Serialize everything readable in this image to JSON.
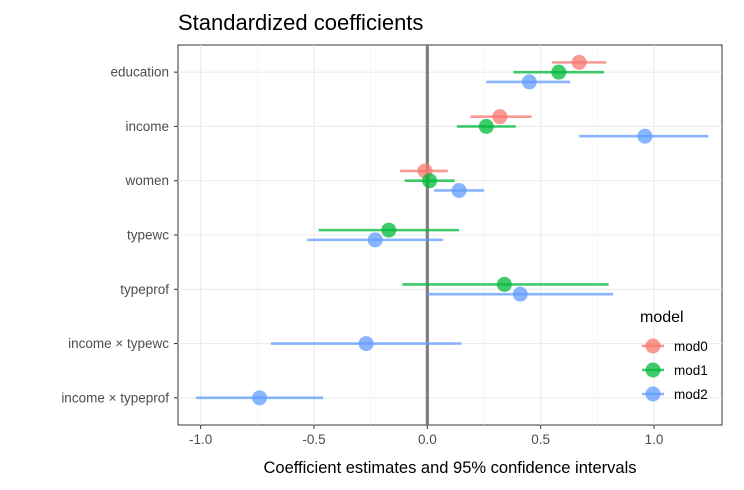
{
  "chart_data": {
    "type": "scatter",
    "subtype": "coefficient-plot",
    "title": "Standardized coefficients",
    "xlabel": "Coefficient estimates and 95% confidence intervals",
    "ylabel": "",
    "xlim": [
      -1.1,
      1.3
    ],
    "x_ticks": [
      -1.0,
      -0.5,
      0.0,
      0.5,
      1.0
    ],
    "x_tick_labels": [
      "-1.0",
      "-0.5",
      "0.0",
      "0.5",
      "1.0"
    ],
    "categories": [
      "education",
      "income",
      "women",
      "typewc",
      "typeprof",
      "income × typewc",
      "income × typeprof"
    ],
    "reference_line": 0,
    "grid": true,
    "legend": {
      "title": "model",
      "position": "right-bottom"
    },
    "series": [
      {
        "name": "mod0",
        "color": "#F8766D",
        "points": [
          {
            "term": "education",
            "estimate": 0.67,
            "lower": 0.55,
            "upper": 0.79
          },
          {
            "term": "income",
            "estimate": 0.32,
            "lower": 0.19,
            "upper": 0.46
          },
          {
            "term": "women",
            "estimate": -0.01,
            "lower": -0.12,
            "upper": 0.09
          }
        ]
      },
      {
        "name": "mod1",
        "color": "#00BA38",
        "points": [
          {
            "term": "education",
            "estimate": 0.58,
            "lower": 0.38,
            "upper": 0.78
          },
          {
            "term": "income",
            "estimate": 0.26,
            "lower": 0.13,
            "upper": 0.39
          },
          {
            "term": "women",
            "estimate": 0.01,
            "lower": -0.1,
            "upper": 0.12
          },
          {
            "term": "typewc",
            "estimate": -0.17,
            "lower": -0.48,
            "upper": 0.14
          },
          {
            "term": "typeprof",
            "estimate": 0.34,
            "lower": -0.11,
            "upper": 0.8
          }
        ]
      },
      {
        "name": "mod2",
        "color": "#619CFF",
        "points": [
          {
            "term": "education",
            "estimate": 0.45,
            "lower": 0.26,
            "upper": 0.63
          },
          {
            "term": "income",
            "estimate": 0.96,
            "lower": 0.67,
            "upper": 1.24
          },
          {
            "term": "women",
            "estimate": 0.14,
            "lower": 0.03,
            "upper": 0.25
          },
          {
            "term": "typewc",
            "estimate": -0.23,
            "lower": -0.53,
            "upper": 0.07
          },
          {
            "term": "typeprof",
            "estimate": 0.41,
            "lower": 0.0,
            "upper": 0.82
          },
          {
            "term": "income × typewc",
            "estimate": -0.27,
            "lower": -0.69,
            "upper": 0.15
          },
          {
            "term": "income × typeprof",
            "estimate": -0.74,
            "lower": -1.02,
            "upper": -0.46
          }
        ]
      }
    ]
  }
}
